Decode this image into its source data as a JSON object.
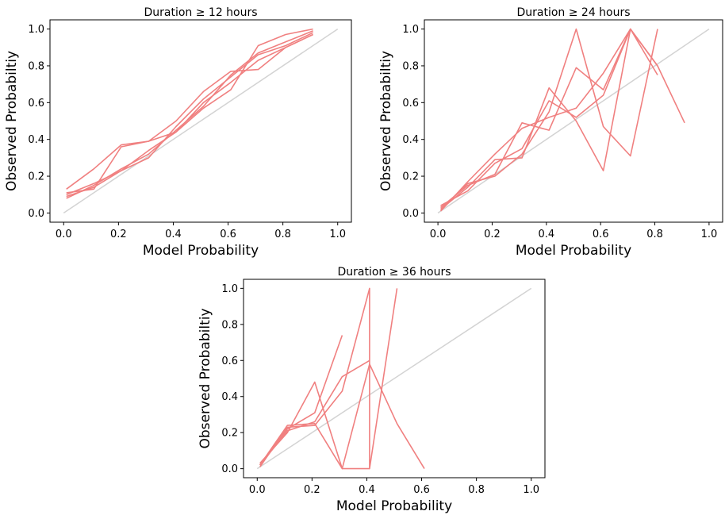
{
  "chart_data": [
    {
      "type": "line",
      "title": "Duration ≥ 12 hours",
      "xlabel": "Model Probability",
      "ylabel": "Observed Probabiltiy",
      "xlim": [
        -0.05,
        1.05
      ],
      "ylim": [
        -0.05,
        1.05
      ],
      "xticks": [
        "0.0",
        "0.2",
        "0.4",
        "0.6",
        "0.8",
        "1.0"
      ],
      "yticks": [
        "0.0",
        "0.2",
        "0.4",
        "0.6",
        "0.8",
        "1.0"
      ],
      "grid": false,
      "line_color": "#f08080",
      "reference_color": "#d3d3d3",
      "reference_line": {
        "x": [
          0,
          1
        ],
        "y": [
          0,
          1
        ]
      },
      "series": [
        {
          "x": [
            0.01,
            0.11,
            0.21,
            0.31,
            0.41,
            0.51,
            0.61,
            0.71,
            0.81,
            0.91
          ],
          "y": [
            0.13,
            0.24,
            0.37,
            0.39,
            0.44,
            0.57,
            0.67,
            0.91,
            0.97,
            1.0
          ]
        },
        {
          "x": [
            0.01,
            0.11,
            0.21,
            0.31,
            0.41,
            0.51,
            0.61,
            0.71,
            0.81,
            0.91
          ],
          "y": [
            0.11,
            0.13,
            0.36,
            0.39,
            0.5,
            0.66,
            0.77,
            0.78,
            0.9,
            0.97
          ]
        },
        {
          "x": [
            0.01,
            0.11,
            0.21,
            0.31,
            0.41,
            0.51,
            0.61,
            0.71,
            0.81,
            0.91
          ],
          "y": [
            0.09,
            0.14,
            0.23,
            0.3,
            0.47,
            0.62,
            0.74,
            0.86,
            0.91,
            0.98
          ]
        },
        {
          "x": [
            0.01,
            0.11,
            0.21,
            0.31,
            0.41,
            0.51,
            0.61,
            0.71,
            0.81,
            0.91
          ],
          "y": [
            0.1,
            0.16,
            0.23,
            0.34,
            0.44,
            0.6,
            0.71,
            0.83,
            0.9,
            0.97
          ]
        },
        {
          "x": [
            0.01,
            0.11,
            0.21,
            0.31,
            0.41,
            0.51,
            0.61,
            0.71,
            0.81,
            0.91
          ],
          "y": [
            0.08,
            0.15,
            0.24,
            0.32,
            0.45,
            0.58,
            0.75,
            0.87,
            0.93,
            0.99
          ]
        }
      ]
    },
    {
      "type": "line",
      "title": "Duration ≥ 24 hours",
      "xlabel": "Model Probability",
      "ylabel": "Observed Probabiltiy",
      "xlim": [
        -0.05,
        1.05
      ],
      "ylim": [
        -0.05,
        1.05
      ],
      "xticks": [
        "0.0",
        "0.2",
        "0.4",
        "0.6",
        "0.8",
        "1.0"
      ],
      "yticks": [
        "0.0",
        "0.2",
        "0.4",
        "0.6",
        "0.8",
        "1.0"
      ],
      "grid": false,
      "line_color": "#f08080",
      "reference_color": "#d3d3d3",
      "reference_line": {
        "x": [
          0,
          1
        ],
        "y": [
          0,
          1
        ]
      },
      "series": [
        {
          "x": [
            0.01,
            0.11,
            0.21,
            0.31,
            0.41,
            0.51,
            0.61,
            0.71,
            0.81
          ],
          "y": [
            0.03,
            0.15,
            0.21,
            0.49,
            0.45,
            0.79,
            0.67,
            1.0,
            0.75
          ]
        },
        {
          "x": [
            0.01,
            0.11,
            0.21,
            0.31,
            0.41,
            0.51,
            0.61,
            0.71,
            0.81
          ],
          "y": [
            0.02,
            0.14,
            0.29,
            0.3,
            0.68,
            0.5,
            0.23,
            1.0,
            0.8
          ]
        },
        {
          "x": [
            0.01,
            0.11,
            0.21,
            0.31,
            0.41,
            0.51,
            0.61,
            0.71,
            0.81,
            0.91
          ],
          "y": [
            0.01,
            0.17,
            0.32,
            0.46,
            0.52,
            0.57,
            0.76,
            1.0,
            0.8,
            0.49
          ]
        },
        {
          "x": [
            0.01,
            0.11,
            0.21,
            0.31,
            0.41,
            0.51,
            0.61,
            0.71,
            0.81
          ],
          "y": [
            0.02,
            0.16,
            0.2,
            0.32,
            0.55,
            1.0,
            0.47,
            0.31,
            1.0
          ]
        },
        {
          "x": [
            0.01,
            0.11,
            0.21,
            0.31,
            0.41,
            0.51,
            0.61,
            0.71
          ],
          "y": [
            0.04,
            0.12,
            0.27,
            0.35,
            0.61,
            0.52,
            0.64,
            1.0
          ]
        }
      ]
    },
    {
      "type": "line",
      "title": "Duration ≥ 36 hours",
      "xlabel": "Model Probability",
      "ylabel": "Observed Probabiltiy",
      "xlim": [
        -0.05,
        1.05
      ],
      "ylim": [
        -0.05,
        1.05
      ],
      "xticks": [
        "0.0",
        "0.2",
        "0.4",
        "0.6",
        "0.8",
        "1.0"
      ],
      "yticks": [
        "0.0",
        "0.2",
        "0.4",
        "0.6",
        "0.8",
        "1.0"
      ],
      "grid": false,
      "line_color": "#f08080",
      "reference_color": "#d3d3d3",
      "reference_line": {
        "x": [
          0,
          1
        ],
        "y": [
          0,
          1
        ]
      },
      "series": [
        {
          "x": [
            0.01,
            0.11,
            0.21,
            0.31
          ],
          "y": [
            0.03,
            0.2,
            0.48,
            0.0
          ]
        },
        {
          "x": [
            0.01,
            0.11,
            0.21,
            0.31
          ],
          "y": [
            0.02,
            0.22,
            0.31,
            0.74
          ]
        },
        {
          "x": [
            0.01,
            0.11,
            0.21,
            0.31,
            0.41
          ],
          "y": [
            0.02,
            0.21,
            0.26,
            0.51,
            0.6
          ]
        },
        {
          "x": [
            0.01,
            0.11,
            0.21,
            0.31,
            0.41,
            0.51,
            0.61
          ],
          "y": [
            0.02,
            0.24,
            0.25,
            0.0,
            0.58,
            0.25,
            0.0
          ]
        },
        {
          "x": [
            0.01,
            0.11,
            0.21,
            0.31,
            0.41,
            0.41,
            0.51
          ],
          "y": [
            0.01,
            0.23,
            0.24,
            0.43,
            1.0,
            0.0,
            1.0
          ]
        },
        {
          "x": [
            0.31,
            0.41
          ],
          "y": [
            0.0,
            0.0
          ]
        }
      ]
    }
  ]
}
